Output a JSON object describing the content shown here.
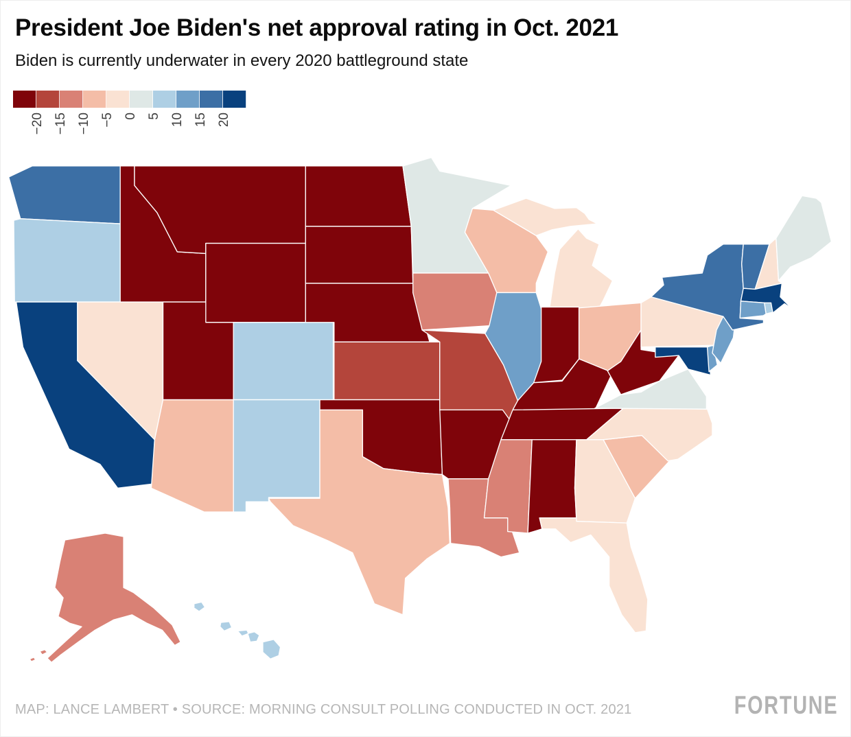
{
  "header": {
    "title": "President Joe Biden's net approval rating in Oct. 2021",
    "subtitle": "Biden is currently underwater in every 2020 battleground state"
  },
  "footer": {
    "credit": "MAP: LANCE LAMBERT • SOURCE: MORNING CONSULT POLLING CONDUCTED IN OCT. 2021",
    "brand": "FORTUNE"
  },
  "chart_data": {
    "type": "choropleth",
    "title": "President Joe Biden's net approval rating in Oct. 2021",
    "subtitle": "Biden is currently underwater in every 2020 battleground state",
    "unit": "net approval, percentage points",
    "note": "state values estimated from 5-point color bins of the map",
    "legend": {
      "thresholds": [
        -20,
        -15,
        -10,
        -5,
        0,
        5,
        10,
        15,
        20
      ],
      "tick_labels": [
        "−20",
        "−15",
        "−10",
        "−5",
        "0",
        "5",
        "10",
        "15",
        "20"
      ],
      "colors": [
        "#7f040a",
        "#b4453b",
        "#d98175",
        "#f4bda7",
        "#fae2d3",
        "#dfe8e6",
        "#aecfe4",
        "#6f9fc8",
        "#3c6fa5",
        "#09417e"
      ]
    },
    "states": [
      {
        "abbr": "AL",
        "name": "Alabama",
        "value": -25
      },
      {
        "abbr": "AK",
        "name": "Alaska",
        "value": -12
      },
      {
        "abbr": "AZ",
        "name": "Arizona",
        "value": -7
      },
      {
        "abbr": "AR",
        "name": "Arkansas",
        "value": -25
      },
      {
        "abbr": "CA",
        "name": "California",
        "value": 25
      },
      {
        "abbr": "CO",
        "name": "Colorado",
        "value": 7
      },
      {
        "abbr": "CT",
        "name": "Connecticut",
        "value": 12
      },
      {
        "abbr": "DE",
        "name": "Delaware",
        "value": 12
      },
      {
        "abbr": "FL",
        "name": "Florida",
        "value": -2
      },
      {
        "abbr": "GA",
        "name": "Georgia",
        "value": -2
      },
      {
        "abbr": "HI",
        "name": "Hawaii",
        "value": 7
      },
      {
        "abbr": "ID",
        "name": "Idaho",
        "value": -25
      },
      {
        "abbr": "IL",
        "name": "Illinois",
        "value": 12
      },
      {
        "abbr": "IN",
        "name": "Indiana",
        "value": -25
      },
      {
        "abbr": "IA",
        "name": "Iowa",
        "value": -12
      },
      {
        "abbr": "KS",
        "name": "Kansas",
        "value": -17
      },
      {
        "abbr": "KY",
        "name": "Kentucky",
        "value": -25
      },
      {
        "abbr": "LA",
        "name": "Louisiana",
        "value": -12
      },
      {
        "abbr": "ME",
        "name": "Maine",
        "value": 2
      },
      {
        "abbr": "MD",
        "name": "Maryland",
        "value": 25
      },
      {
        "abbr": "MA",
        "name": "Massachusetts",
        "value": 25
      },
      {
        "abbr": "MI",
        "name": "Michigan",
        "value": -2
      },
      {
        "abbr": "MN",
        "name": "Minnesota",
        "value": 2
      },
      {
        "abbr": "MS",
        "name": "Mississippi",
        "value": -12
      },
      {
        "abbr": "MO",
        "name": "Missouri",
        "value": -17
      },
      {
        "abbr": "MT",
        "name": "Montana",
        "value": -25
      },
      {
        "abbr": "NE",
        "name": "Nebraska",
        "value": -25
      },
      {
        "abbr": "NV",
        "name": "Nevada",
        "value": -2
      },
      {
        "abbr": "NH",
        "name": "New Hampshire",
        "value": -2
      },
      {
        "abbr": "NJ",
        "name": "New Jersey",
        "value": 12
      },
      {
        "abbr": "NM",
        "name": "New Mexico",
        "value": 7
      },
      {
        "abbr": "NY",
        "name": "New York",
        "value": 17
      },
      {
        "abbr": "NC",
        "name": "North Carolina",
        "value": -2
      },
      {
        "abbr": "ND",
        "name": "North Dakota",
        "value": -25
      },
      {
        "abbr": "OH",
        "name": "Ohio",
        "value": -7
      },
      {
        "abbr": "OK",
        "name": "Oklahoma",
        "value": -25
      },
      {
        "abbr": "OR",
        "name": "Oregon",
        "value": 7
      },
      {
        "abbr": "PA",
        "name": "Pennsylvania",
        "value": -2
      },
      {
        "abbr": "RI",
        "name": "Rhode Island",
        "value": 7
      },
      {
        "abbr": "SC",
        "name": "South Carolina",
        "value": -7
      },
      {
        "abbr": "SD",
        "name": "South Dakota",
        "value": -25
      },
      {
        "abbr": "TN",
        "name": "Tennessee",
        "value": -25
      },
      {
        "abbr": "TX",
        "name": "Texas",
        "value": -7
      },
      {
        "abbr": "UT",
        "name": "Utah",
        "value": -25
      },
      {
        "abbr": "VT",
        "name": "Vermont",
        "value": 17
      },
      {
        "abbr": "VA",
        "name": "Virginia",
        "value": 2
      },
      {
        "abbr": "WA",
        "name": "Washington",
        "value": 17
      },
      {
        "abbr": "WV",
        "name": "West Virginia",
        "value": -25
      },
      {
        "abbr": "WI",
        "name": "Wisconsin",
        "value": -7
      },
      {
        "abbr": "WY",
        "name": "Wyoming",
        "value": -25
      }
    ]
  }
}
